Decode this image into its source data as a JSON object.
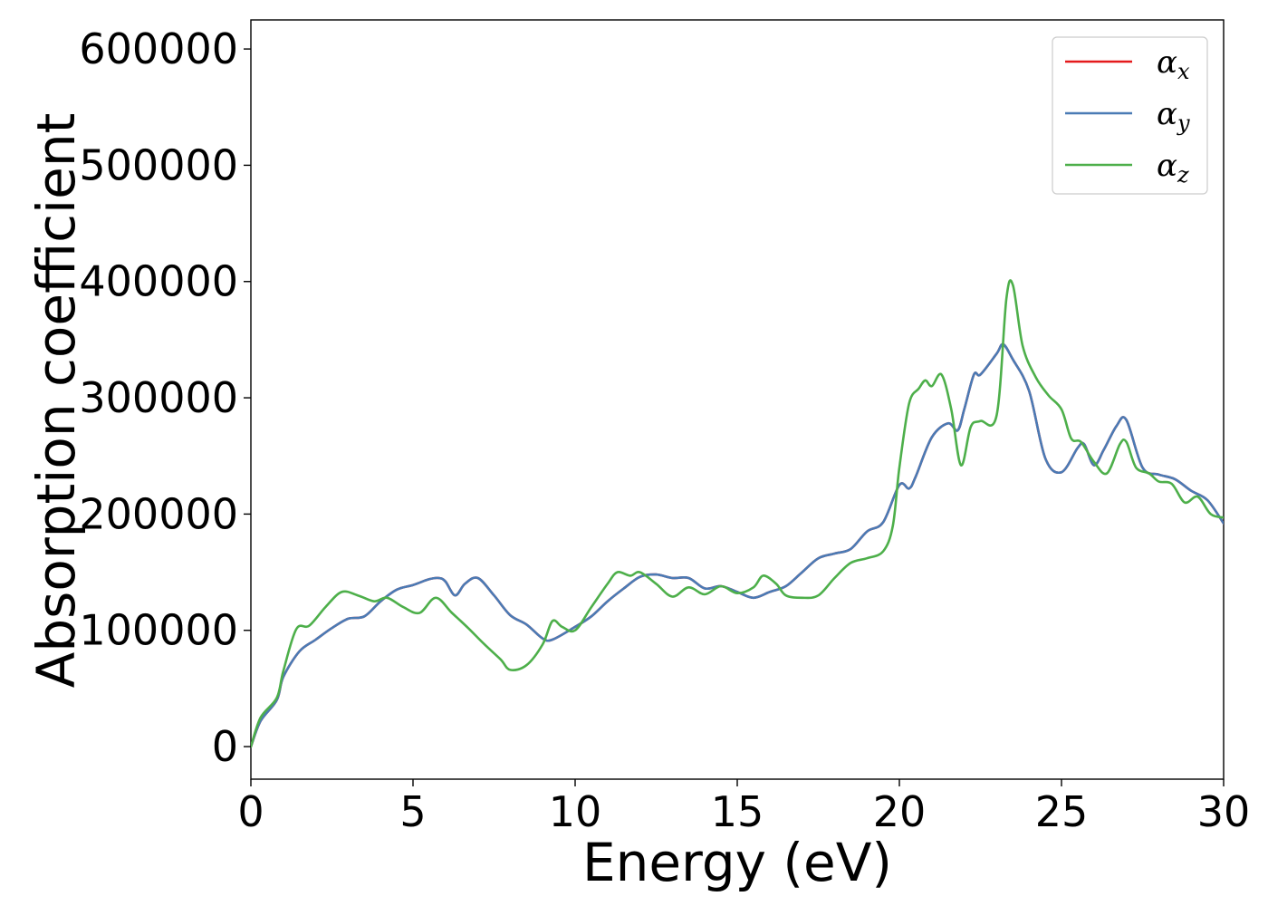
{
  "chart_data": {
    "type": "line",
    "title": "",
    "xlabel": "Energy (eV)",
    "ylabel": "Absorption coefficient",
    "xlim": [
      0,
      30
    ],
    "ylim": [
      -28000,
      625000
    ],
    "xticks": [
      0,
      5,
      10,
      15,
      20,
      25,
      30
    ],
    "yticks": [
      0,
      100000,
      200000,
      300000,
      400000,
      500000,
      600000
    ],
    "xtick_labels": [
      "0",
      "5",
      "10",
      "15",
      "20",
      "25",
      "30"
    ],
    "ytick_labels": [
      "0",
      "100000",
      "200000",
      "300000",
      "400000",
      "500000",
      "600000"
    ],
    "grid": false,
    "legend": "top-right",
    "series": [
      {
        "name": "αx",
        "legend_symbol": "α",
        "legend_subscript": "x",
        "color": "#e41a1c",
        "x": [
          0,
          0.3,
          0.8,
          1.0,
          1.5,
          2.0,
          2.5,
          3.0,
          3.5,
          4.0,
          4.5,
          5.0,
          5.5,
          5.8,
          6.0,
          6.3,
          6.6,
          7.0,
          7.5,
          8.0,
          8.5,
          9.0,
          9.3,
          10.0,
          10.5,
          11.0,
          11.5,
          12.0,
          12.5,
          13.0,
          13.5,
          14.0,
          14.5,
          15.0,
          15.5,
          16.0,
          16.5,
          17.0,
          17.5,
          18.0,
          18.5,
          19.0,
          19.5,
          20.0,
          20.3,
          20.5,
          21.0,
          21.5,
          21.8,
          22.0,
          22.3,
          22.5,
          23.0,
          23.2,
          23.5,
          24.0,
          24.5,
          25.0,
          25.5,
          25.7,
          26.0,
          26.3,
          26.7,
          27.0,
          27.5,
          28.0,
          28.5,
          29.0,
          29.5,
          30.0
        ],
        "y": [
          0,
          22000,
          40000,
          60000,
          82000,
          92000,
          102000,
          110000,
          112000,
          125000,
          135000,
          139000,
          144000,
          145000,
          142000,
          130000,
          140000,
          145000,
          130000,
          113000,
          105000,
          93000,
          92000,
          103000,
          112000,
          125000,
          136000,
          146000,
          148000,
          145000,
          145000,
          136000,
          138000,
          133000,
          128000,
          133000,
          138000,
          150000,
          162000,
          166000,
          170000,
          185000,
          193000,
          225000,
          222000,
          232000,
          266000,
          278000,
          272000,
          290000,
          320000,
          320000,
          338000,
          346000,
          333000,
          306000,
          248000,
          236000,
          257000,
          260000,
          242000,
          255000,
          276000,
          281000,
          240000,
          234000,
          230000,
          220000,
          212000,
          192000
        ]
      },
      {
        "name": "αy",
        "legend_symbol": "α",
        "legend_subscript": "y",
        "color": "#4a7bb5",
        "x": [
          0,
          0.3,
          0.8,
          1.0,
          1.5,
          2.0,
          2.5,
          3.0,
          3.5,
          4.0,
          4.5,
          5.0,
          5.5,
          5.8,
          6.0,
          6.3,
          6.6,
          7.0,
          7.5,
          8.0,
          8.5,
          9.0,
          9.3,
          10.0,
          10.5,
          11.0,
          11.5,
          12.0,
          12.5,
          13.0,
          13.5,
          14.0,
          14.5,
          15.0,
          15.5,
          16.0,
          16.5,
          17.0,
          17.5,
          18.0,
          18.5,
          19.0,
          19.5,
          20.0,
          20.3,
          20.5,
          21.0,
          21.5,
          21.8,
          22.0,
          22.3,
          22.5,
          23.0,
          23.2,
          23.5,
          24.0,
          24.5,
          25.0,
          25.5,
          25.7,
          26.0,
          26.3,
          26.7,
          27.0,
          27.5,
          28.0,
          28.5,
          29.0,
          29.5,
          30.0
        ],
        "y": [
          0,
          22000,
          40000,
          60000,
          82000,
          92000,
          102000,
          110000,
          112000,
          125000,
          135000,
          139000,
          144000,
          145000,
          142000,
          130000,
          140000,
          145000,
          130000,
          113000,
          105000,
          93000,
          92000,
          103000,
          112000,
          125000,
          136000,
          146000,
          148000,
          145000,
          145000,
          136000,
          138000,
          133000,
          128000,
          133000,
          138000,
          150000,
          162000,
          166000,
          170000,
          185000,
          193000,
          225000,
          222000,
          232000,
          266000,
          278000,
          272000,
          290000,
          320000,
          320000,
          338000,
          346000,
          333000,
          306000,
          248000,
          236000,
          257000,
          260000,
          242000,
          255000,
          276000,
          281000,
          240000,
          234000,
          230000,
          220000,
          212000,
          192000
        ]
      },
      {
        "name": "αz",
        "legend_symbol": "α",
        "legend_subscript": "z",
        "color": "#4daf4a",
        "x": [
          0,
          0.3,
          0.8,
          1.0,
          1.4,
          1.8,
          2.3,
          2.8,
          3.3,
          3.8,
          4.2,
          4.7,
          5.2,
          5.7,
          6.2,
          6.7,
          7.2,
          7.7,
          8.0,
          8.5,
          9.0,
          9.3,
          9.6,
          10.0,
          10.5,
          11.0,
          11.3,
          11.7,
          12.0,
          12.5,
          13.0,
          13.5,
          14.0,
          14.5,
          15.0,
          15.5,
          15.8,
          16.2,
          16.5,
          17.0,
          17.5,
          18.0,
          18.5,
          19.0,
          19.5,
          19.8,
          20.0,
          20.3,
          20.6,
          20.8,
          21.0,
          21.3,
          21.6,
          21.9,
          22.2,
          22.5,
          23.0,
          23.3,
          23.5,
          23.8,
          24.2,
          24.6,
          25.0,
          25.3,
          25.6,
          26.0,
          26.4,
          26.8,
          27.0,
          27.3,
          27.7,
          28.0,
          28.4,
          28.8,
          29.2,
          29.6,
          30.0
        ],
        "y": [
          0,
          25000,
          42000,
          65000,
          101000,
          104000,
          120000,
          133000,
          130000,
          125000,
          128000,
          120000,
          115000,
          128000,
          115000,
          102000,
          88000,
          75000,
          66000,
          70000,
          88000,
          108000,
          103000,
          100000,
          120000,
          140000,
          150000,
          147000,
          150000,
          140000,
          129000,
          137000,
          131000,
          138000,
          132000,
          137000,
          147000,
          140000,
          130000,
          128000,
          130000,
          145000,
          158000,
          162000,
          168000,
          190000,
          240000,
          295000,
          308000,
          315000,
          310000,
          320000,
          290000,
          242000,
          275000,
          280000,
          285000,
          385000,
          397000,
          345000,
          318000,
          302000,
          290000,
          265000,
          262000,
          245000,
          235000,
          260000,
          262000,
          240000,
          235000,
          228000,
          226000,
          210000,
          215000,
          200000,
          197000
        ]
      }
    ]
  }
}
